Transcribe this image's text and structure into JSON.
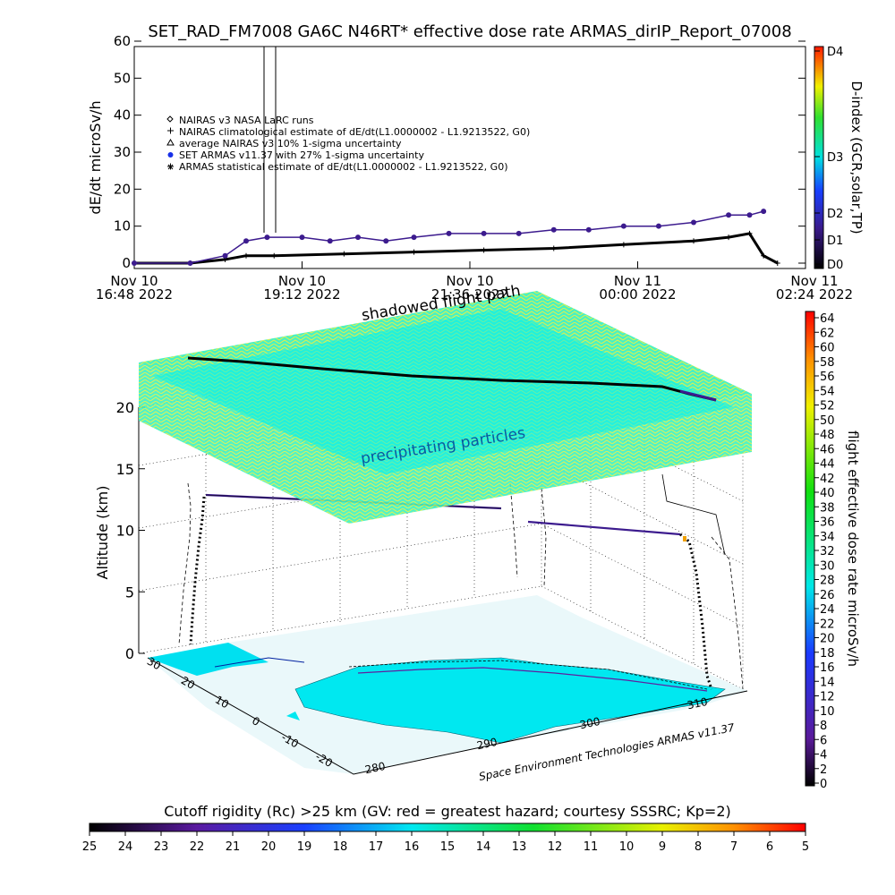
{
  "title": "SET_RAD_FM7008  GA6C N46RT* effective dose rate ARMAS_dirIP_Report_07008",
  "top_panel": {
    "ylabel": "dE/dt microSv/h",
    "y_ticks": [
      "0",
      "10",
      "20",
      "30",
      "40",
      "50",
      "60"
    ],
    "x_ticks": [
      {
        "date": "Nov 10",
        "time": "16:48 2022"
      },
      {
        "date": "Nov 10",
        "time": "19:12 2022"
      },
      {
        "date": "Nov 10",
        "time": "21:36 2022"
      },
      {
        "date": "Nov 11",
        "time": "00:00 2022"
      },
      {
        "date": "Nov 11",
        "time": "02:24 2022"
      }
    ],
    "legend": [
      {
        "symbol": "diamond",
        "text": "NAIRAS v3 NASA LaRC runs"
      },
      {
        "symbol": "plus",
        "text": "NAIRAS climatological estimate of dE/dt(L1.0000002 - L1.9213522, G0)"
      },
      {
        "symbol": "triangle",
        "text": "average NAIRAS v3 10% 1-sigma uncertainty"
      },
      {
        "symbol": "dot",
        "text": "SET ARMAS v11.37 with 27% 1-sigma uncertainty"
      },
      {
        "symbol": "star",
        "text": "ARMAS statistical estimate of dE/dt(L1.0000002 - L1.9213522, G0)"
      }
    ],
    "dindex_label": "D-index (GCR,solar,TP)",
    "dindex_ticks": [
      "D0",
      "D1",
      "D2",
      "D3",
      "D4"
    ]
  },
  "chart_data": {
    "type": "scatter",
    "title": "SET_RAD_FM7008  GA6C N46RT* effective dose rate ARMAS_dirIP_Report_07008",
    "xlabel": "",
    "ylabel": "dE/dt microSv/h",
    "ylim": [
      0,
      60
    ],
    "x_range_hours": [
      0,
      9.6
    ],
    "series": [
      {
        "name": "SET ARMAS v11.37 with 27% 1-sigma uncertainty",
        "x": [
          0.0,
          0.8,
          1.3,
          1.6,
          1.9,
          2.4,
          2.8,
          3.2,
          3.6,
          4.0,
          4.5,
          5.0,
          5.5,
          6.0,
          6.5,
          7.0,
          7.5,
          8.0,
          8.5,
          8.8,
          9.0
        ],
        "y": [
          0,
          0,
          2,
          6,
          7,
          7,
          6,
          7,
          6,
          7,
          8,
          8,
          8,
          9,
          9,
          10,
          10,
          11,
          13,
          13,
          14
        ]
      },
      {
        "name": "NAIRAS climatological estimate of dE/dt(L1.0000002 - L1.9213522, G0)",
        "x": [
          0.0,
          0.8,
          1.3,
          1.6,
          2.0,
          3.0,
          4.0,
          5.0,
          6.0,
          7.0,
          8.0,
          8.5,
          8.8,
          9.0,
          9.2
        ],
        "y": [
          0,
          0,
          1,
          2,
          2,
          2.5,
          3,
          3.5,
          4,
          5,
          6,
          7,
          8,
          2,
          0
        ]
      }
    ]
  },
  "scene": {
    "annotation_shadowed": "shadowed flight path",
    "annotation_precip": "precipitating particles",
    "altitude_label": "Altitude (km)",
    "altitude_ticks": [
      "0",
      "5",
      "10",
      "15",
      "20"
    ],
    "lat_ticks": [
      "30",
      "20",
      "10",
      "0",
      "-10",
      "-20"
    ],
    "lon_ticks": [
      "280",
      "290",
      "300",
      "310"
    ],
    "credit": "Space Environment Technologies ARMAS v11.37",
    "dose_label": "flight effective dose rate microSv/h",
    "dose_ticks": [
      "0",
      "2",
      "4",
      "6",
      "8",
      "10",
      "12",
      "14",
      "16",
      "18",
      "20",
      "22",
      "24",
      "26",
      "28",
      "30",
      "32",
      "34",
      "36",
      "38",
      "40",
      "42",
      "44",
      "46",
      "48",
      "50",
      "52",
      "54",
      "56",
      "58",
      "60",
      "62",
      "64"
    ]
  },
  "bottom_bar": {
    "title": "Cutoff rigidity (Rc) >25 km (GV: red = greatest hazard; courtesy SSSRC; Kp=2)",
    "ticks": [
      "25",
      "24",
      "23",
      "22",
      "21",
      "20",
      "19",
      "18",
      "17",
      "16",
      "15",
      "14",
      "13",
      "12",
      "11",
      "10",
      "9",
      "8",
      "7",
      "6",
      "5"
    ]
  },
  "colors": {
    "armas_point": "#3c1b8e",
    "precip_cyan": "#00f0f0",
    "precip_yellow": "#f0f000",
    "ocean_cyan": "#00e8f0"
  }
}
